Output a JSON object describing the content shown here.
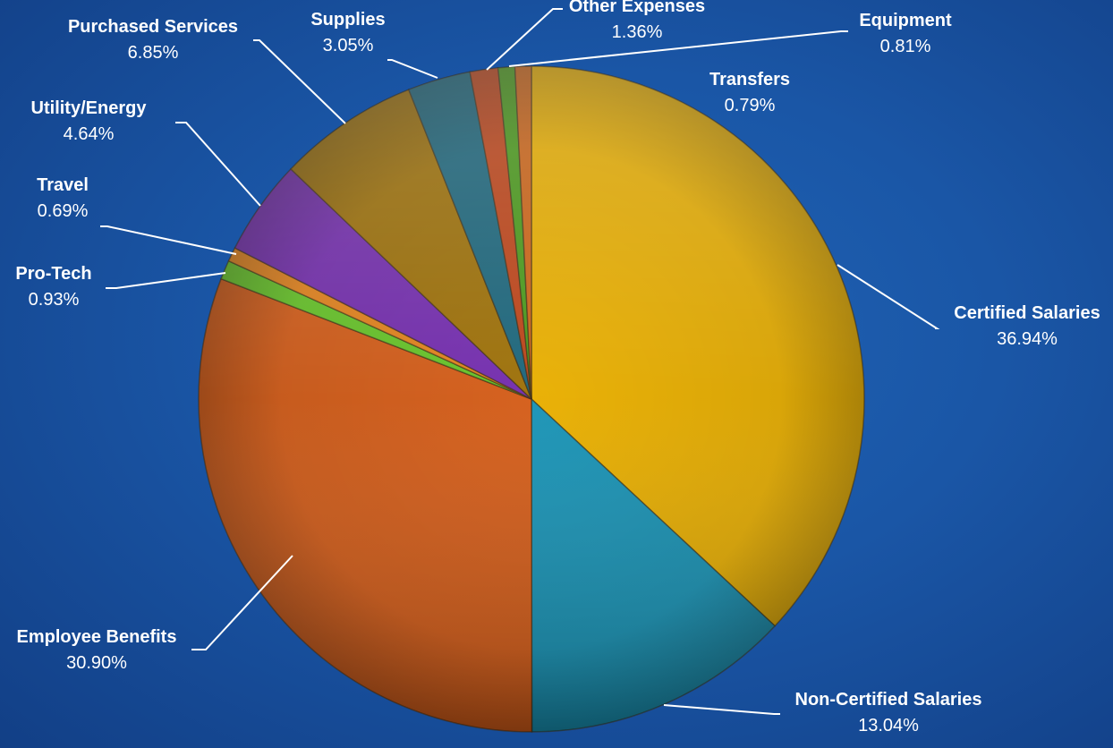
{
  "chart_data": {
    "type": "pie",
    "title": "",
    "start_at": "top",
    "direction": "clockwise",
    "slices": [
      {
        "label": "Certified Salaries",
        "value": 36.94,
        "display": "36.94%",
        "color": "#f5b800"
      },
      {
        "label": "Non-Certified Salaries",
        "value": 13.04,
        "display": "13.04%",
        "color": "#1a9bbf"
      },
      {
        "label": "Employee Benefits",
        "value": 30.9,
        "display": "30.90%",
        "color": "#e0621a"
      },
      {
        "label": "Pro-Tech",
        "value": 0.93,
        "display": "0.93%",
        "color": "#6ccf2a"
      },
      {
        "label": "Travel",
        "value": 0.69,
        "display": "0.69%",
        "color": "#f08a1e"
      },
      {
        "label": "Utility/Energy",
        "value": 4.64,
        "display": "4.64%",
        "color": "#7a2fb8"
      },
      {
        "label": "Purchased Services",
        "value": 6.85,
        "display": "6.85%",
        "color": "#a67608"
      },
      {
        "label": "Supplies",
        "value": 3.05,
        "display": "3.05%",
        "color": "#1d6b82"
      },
      {
        "label": "Other Expenses",
        "value": 1.36,
        "display": "1.36%",
        "color": "#c8481a"
      },
      {
        "label": "Equipment",
        "value": 0.81,
        "display": "0.81%",
        "color": "#4ea21c"
      },
      {
        "label": "Transfers",
        "value": 0.79,
        "display": "0.79%",
        "color": "#d86a18"
      }
    ]
  }
}
